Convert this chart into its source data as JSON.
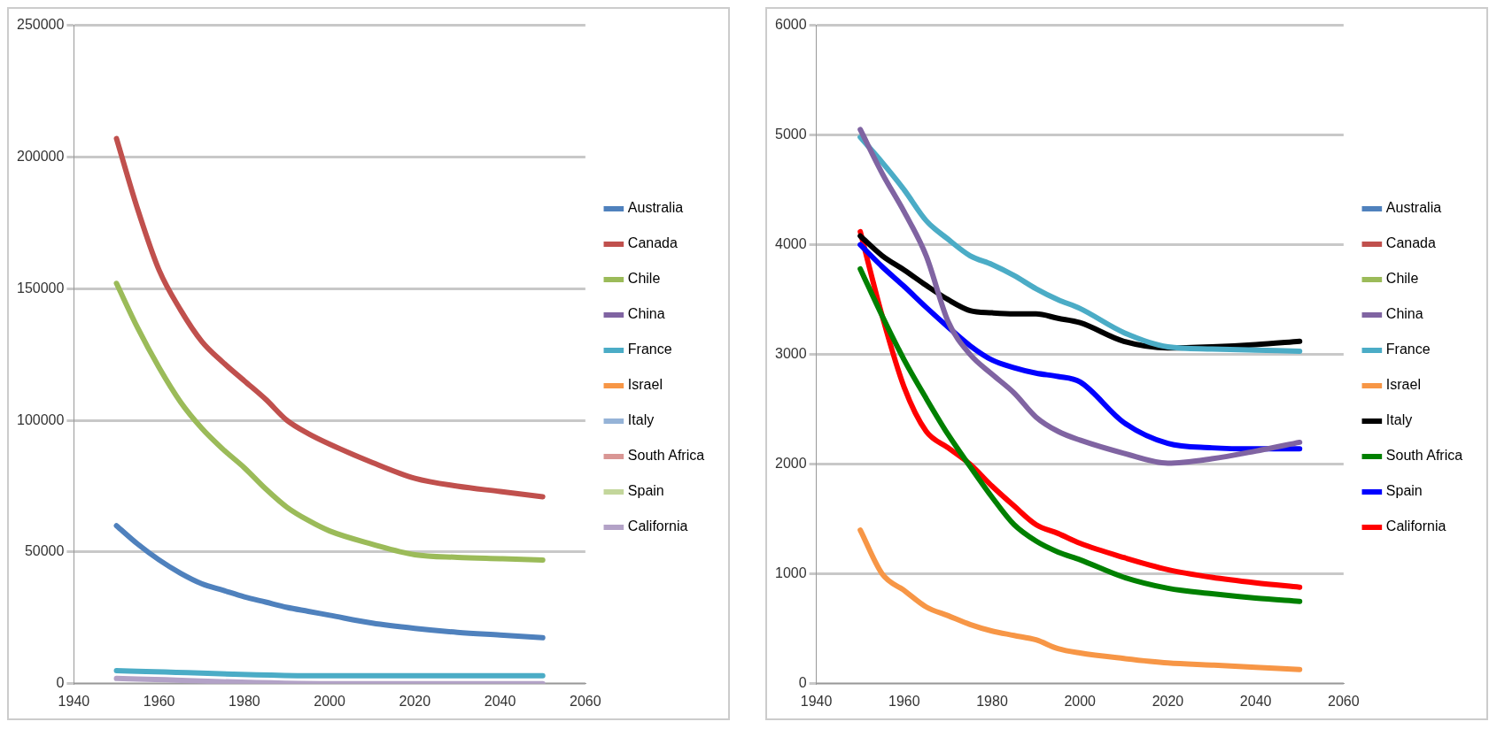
{
  "chart_data": [
    {
      "type": "line",
      "x": [
        1950,
        1955,
        1960,
        1965,
        1970,
        1975,
        1980,
        1985,
        1990,
        1995,
        2000,
        2010,
        2020,
        2030,
        2040,
        2050
      ],
      "xlim": [
        1940,
        2060
      ],
      "xticks": [
        1940,
        1960,
        1980,
        2000,
        2020,
        2040,
        2060
      ],
      "ylim": [
        0,
        250000
      ],
      "yticks": [
        0,
        50000,
        100000,
        150000,
        200000,
        250000
      ],
      "grid": "y",
      "legend": "right",
      "marker": "none",
      "line_style": "solid",
      "series": [
        {
          "name": "Australia",
          "color": "#4f81bd",
          "values": [
            60000,
            53000,
            47000,
            42000,
            38000,
            35500,
            33000,
            31000,
            29000,
            27500,
            26000,
            23000,
            21000,
            19500,
            18500,
            17500
          ]
        },
        {
          "name": "Canada",
          "color": "#c0504d",
          "values": [
            207000,
            180000,
            157000,
            142000,
            130000,
            122000,
            115000,
            108000,
            100000,
            95000,
            91000,
            84000,
            78000,
            75000,
            73000,
            71000
          ]
        },
        {
          "name": "Chile",
          "color": "#9bbb59",
          "values": [
            152000,
            135000,
            120000,
            107000,
            97000,
            89000,
            82000,
            74000,
            67000,
            62000,
            58000,
            53000,
            49000,
            48000,
            47500,
            47000
          ]
        },
        {
          "name": "China",
          "color": "#8064a2",
          "values": [
            null,
            null,
            null,
            null,
            null,
            null,
            null,
            null,
            null,
            null,
            null,
            null,
            null,
            null,
            null,
            null
          ]
        },
        {
          "name": "France",
          "color": "#4bacc6",
          "x": [
            1950,
            2000,
            2050
          ],
          "values": [
            5000,
            3000,
            3000
          ]
        },
        {
          "name": "Israel",
          "color": "#f79646",
          "values": [
            null,
            null,
            null,
            null,
            null,
            null,
            null,
            null,
            null,
            null,
            null,
            null,
            null,
            null,
            null,
            null
          ]
        },
        {
          "name": "Italy",
          "color": "#95b3d7",
          "values": [
            null,
            null,
            null,
            null,
            null,
            null,
            null,
            null,
            null,
            null,
            null,
            null,
            null,
            null,
            null,
            null
          ]
        },
        {
          "name": "South Africa",
          "color": "#d99694",
          "values": [
            null,
            null,
            null,
            null,
            null,
            null,
            null,
            null,
            null,
            null,
            null,
            null,
            null,
            null,
            null,
            null
          ]
        },
        {
          "name": "Spain",
          "color": "#c3d69b",
          "values": [
            null,
            null,
            null,
            null,
            null,
            null,
            null,
            null,
            null,
            null,
            null,
            null,
            null,
            null,
            null,
            null
          ]
        },
        {
          "name": "California",
          "color": "#b3a2c7",
          "x": [
            1950,
            2000,
            2050
          ],
          "values": [
            2000,
            0,
            0
          ]
        }
      ]
    },
    {
      "type": "line",
      "x": [
        1950,
        1955,
        1960,
        1965,
        1970,
        1975,
        1980,
        1985,
        1990,
        1995,
        2000,
        2010,
        2020,
        2030,
        2040,
        2050
      ],
      "xlim": [
        1940,
        2060
      ],
      "xticks": [
        1940,
        1960,
        1980,
        2000,
        2020,
        2040,
        2060
      ],
      "ylim": [
        0,
        6000
      ],
      "yticks": [
        0,
        1000,
        2000,
        3000,
        4000,
        5000,
        6000
      ],
      "grid": "y",
      "legend": "right",
      "marker": "none",
      "line_style": "solid",
      "series": [
        {
          "name": "Australia",
          "color": "#4f81bd",
          "values": [
            null,
            null,
            null,
            null,
            null,
            null,
            null,
            null,
            null,
            null,
            null,
            null,
            null,
            null,
            null,
            null
          ]
        },
        {
          "name": "Canada",
          "color": "#c0504d",
          "values": [
            null,
            null,
            null,
            null,
            null,
            null,
            null,
            null,
            null,
            null,
            null,
            null,
            null,
            null,
            null,
            null
          ]
        },
        {
          "name": "Chile",
          "color": "#9bbb59",
          "values": [
            null,
            null,
            null,
            null,
            null,
            null,
            null,
            null,
            null,
            null,
            null,
            null,
            null,
            null,
            null,
            null
          ]
        },
        {
          "name": "China",
          "color": "#8064a2",
          "values": [
            5050,
            4650,
            4300,
            3900,
            3300,
            3000,
            2820,
            2650,
            2430,
            2300,
            2220,
            2100,
            2010,
            2050,
            2120,
            2200
          ]
        },
        {
          "name": "France",
          "color": "#4bacc6",
          "values": [
            4980,
            4750,
            4500,
            4220,
            4050,
            3900,
            3820,
            3720,
            3600,
            3500,
            3420,
            3200,
            3070,
            3050,
            3040,
            3030
          ]
        },
        {
          "name": "Israel",
          "color": "#f79646",
          "values": [
            1400,
            1000,
            850,
            700,
            620,
            540,
            480,
            440,
            400,
            320,
            280,
            230,
            190,
            170,
            150,
            130
          ]
        },
        {
          "name": "Italy",
          "color": "#000000",
          "values": [
            4080,
            3900,
            3770,
            3630,
            3500,
            3400,
            3380,
            3370,
            3370,
            3330,
            3290,
            3120,
            3060,
            3070,
            3090,
            3120
          ]
        },
        {
          "name": "South Africa",
          "color": "#008000",
          "values": [
            3780,
            3350,
            2950,
            2600,
            2270,
            1980,
            1700,
            1450,
            1300,
            1200,
            1130,
            970,
            870,
            820,
            780,
            750
          ]
        },
        {
          "name": "Spain",
          "color": "#0000ff",
          "values": [
            4000,
            3800,
            3620,
            3430,
            3250,
            3080,
            2950,
            2880,
            2830,
            2800,
            2750,
            2380,
            2190,
            2150,
            2140,
            2140
          ]
        },
        {
          "name": "California",
          "color": "#ff0000",
          "values": [
            4120,
            3350,
            2700,
            2300,
            2150,
            2000,
            1800,
            1620,
            1450,
            1370,
            1280,
            1150,
            1040,
            970,
            920,
            880
          ]
        }
      ]
    }
  ]
}
